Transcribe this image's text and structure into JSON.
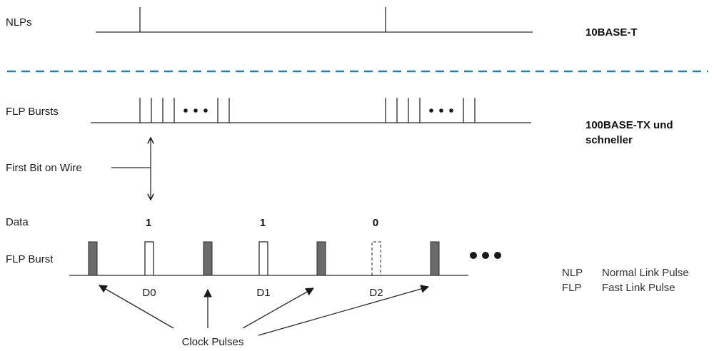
{
  "diagram": {
    "top": {
      "nlps_label": "NLPs",
      "standard_label": "10BASE-T"
    },
    "middle": {
      "flp_bursts_label": "FLP Bursts",
      "standard_label_line1": "100BASE-TX und",
      "standard_label_line2": "schneller",
      "first_bit_label": "First Bit on Wire"
    },
    "bottom": {
      "data_label": "Data",
      "flp_burst_label": "FLP Burst",
      "data_bits": [
        "1",
        "1",
        "0"
      ],
      "pulse_labels": [
        "D0",
        "D1",
        "D2"
      ],
      "clock_pulses_label": "Clock Pulses"
    },
    "legend": [
      {
        "abbr": "NLP",
        "text": "Normal Link Pulse"
      },
      {
        "abbr": "FLP",
        "text": "Fast Link Pulse"
      }
    ],
    "colors": {
      "divider": "#2e7fa8",
      "clock_pulse_fill": "#6b6b6b",
      "line": "#2a2a2a"
    }
  }
}
